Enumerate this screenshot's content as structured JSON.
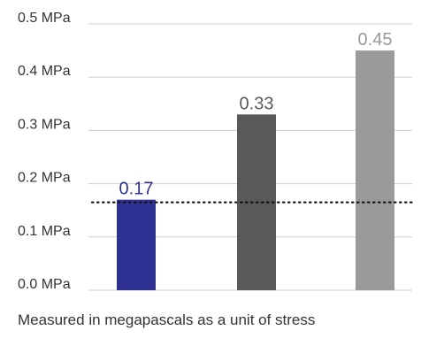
{
  "chart_data": {
    "type": "bar",
    "categories": [
      "",
      "",
      ""
    ],
    "values": [
      0.17,
      0.33,
      0.45
    ],
    "value_labels": [
      "0.17",
      "0.33",
      "0.45"
    ],
    "bar_colors": [
      "#2e3192",
      "#595959",
      "#9a9a9a"
    ],
    "label_colors": [
      "#2e3192",
      "#595959",
      "#9a9a9a"
    ],
    "ylim": [
      0,
      0.5
    ],
    "yticks": [
      {
        "value": 0.0,
        "label": "0.0 MPa"
      },
      {
        "value": 0.1,
        "label": "0.1 MPa"
      },
      {
        "value": 0.2,
        "label": "0.2 MPa"
      },
      {
        "value": 0.3,
        "label": "0.3 MPa"
      },
      {
        "value": 0.4,
        "label": "0.4 MPa"
      },
      {
        "value": 0.5,
        "label": "0.5 MPa"
      }
    ],
    "reference_line": {
      "value": 0.165,
      "style": "dotted"
    },
    "grid": true,
    "caption": "Measured in megapascals as a unit of stress",
    "title": "",
    "xlabel": "",
    "ylabel": ""
  }
}
